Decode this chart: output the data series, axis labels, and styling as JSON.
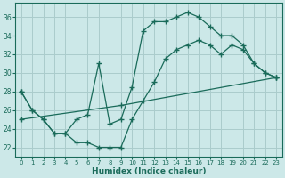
{
  "xlabel": "Humidex (Indice chaleur)",
  "xlim": [
    -0.5,
    23.5
  ],
  "ylim": [
    21.0,
    37.5
  ],
  "xticks": [
    0,
    1,
    2,
    3,
    4,
    5,
    6,
    7,
    8,
    9,
    10,
    11,
    12,
    13,
    14,
    15,
    16,
    17,
    18,
    19,
    20,
    21,
    22,
    23
  ],
  "yticks": [
    22,
    24,
    26,
    28,
    30,
    32,
    34,
    36
  ],
  "bg_color": "#cce8e8",
  "grid_color": "#aacccc",
  "line_color": "#1a6b5a",
  "line1_x": [
    0,
    1,
    2,
    3,
    4,
    5,
    6,
    7,
    8,
    9,
    10,
    11,
    12,
    13,
    14,
    15,
    16,
    17,
    18,
    19,
    20,
    21,
    22,
    23
  ],
  "line1_y": [
    28,
    26,
    25,
    23.5,
    23.5,
    25,
    25.5,
    31,
    24.5,
    25,
    28.5,
    34.5,
    35.5,
    35.5,
    36,
    36.5,
    36,
    35,
    34,
    34,
    33,
    31,
    30,
    29.5
  ],
  "line2_x": [
    0,
    1,
    2,
    3,
    4,
    5,
    6,
    7,
    8,
    9,
    10,
    11,
    12,
    13,
    14,
    15,
    16,
    17,
    18,
    19,
    20,
    21,
    22,
    23
  ],
  "line2_y": [
    28,
    26,
    25,
    23.5,
    23.5,
    22.5,
    22.5,
    22,
    22,
    22,
    25,
    27,
    29,
    31.5,
    32.5,
    33,
    33.5,
    33,
    32,
    33,
    32.5,
    31,
    30,
    29.5
  ],
  "line3_x": [
    0,
    9,
    23
  ],
  "line3_y": [
    25,
    26.5,
    29.5
  ]
}
